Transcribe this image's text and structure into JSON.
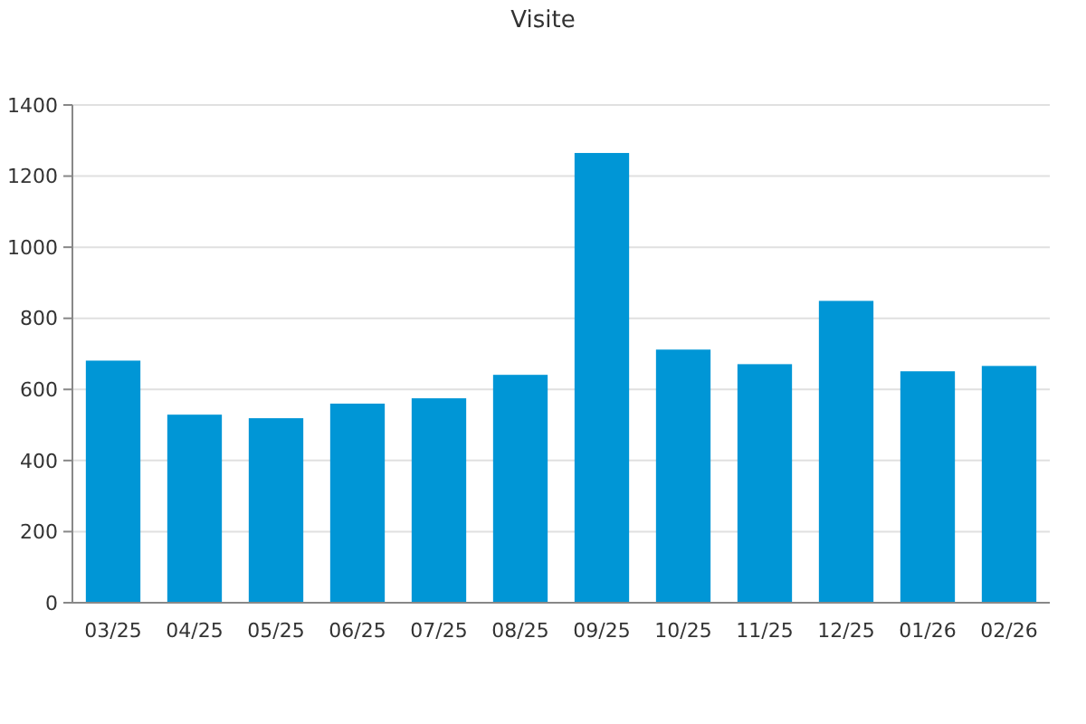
{
  "chart_data": {
    "type": "bar",
    "title": "Visite",
    "categories": [
      "03/25",
      "04/25",
      "05/25",
      "06/25",
      "07/25",
      "08/25",
      "09/25",
      "10/25",
      "11/25",
      "12/25",
      "01/26",
      "02/26"
    ],
    "values": [
      681,
      529,
      519,
      560,
      575,
      641,
      1265,
      712,
      671,
      849,
      651,
      666
    ],
    "color": "#0096d6",
    "ylim": [
      0,
      1400
    ],
    "yticks": [
      0,
      200,
      400,
      600,
      800,
      1000,
      1200,
      1400
    ],
    "grid": "y"
  }
}
